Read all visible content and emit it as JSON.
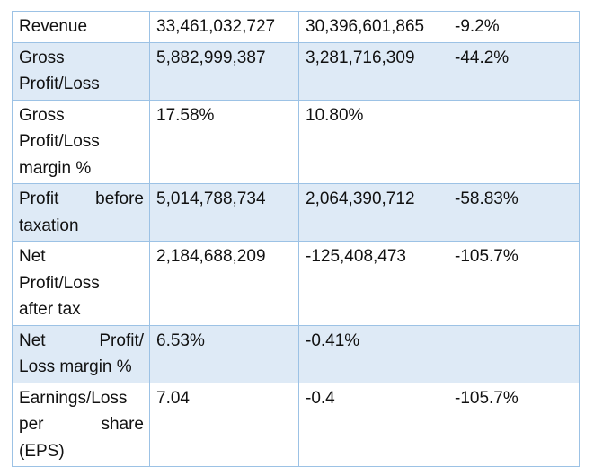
{
  "table": {
    "rows": [
      {
        "label_lines": [
          "Revenue"
        ],
        "col1": "33,461,032,727",
        "col2": "30,396,601,865",
        "col3": "-9.2%"
      },
      {
        "label_lines": [
          "Gross",
          "Profit/Loss"
        ],
        "col1": "5,882,999,387",
        "col2": "3,281,716,309",
        "col3": "-44.2%"
      },
      {
        "label_lines": [
          "Gross",
          "Profit/Loss",
          "margin %"
        ],
        "col1": "17.58%",
        "col2": "10.80%",
        "col3": ""
      },
      {
        "label_lines": [
          "Profit before",
          "taxation"
        ],
        "col1": "5,014,788,734",
        "col2": "2,064,390,712",
        "col3": "-58.83%"
      },
      {
        "label_lines": [
          "Net",
          "Profit/Loss",
          "after tax"
        ],
        "col1": "2,184,688,209",
        "col2": "-125,408,473",
        "col3": "-105.7%"
      },
      {
        "label_lines": [
          "Net Profit/",
          "Loss margin %"
        ],
        "col1": "6.53%",
        "col2": "-0.41%",
        "col3": ""
      },
      {
        "label_lines": [
          "Earnings/Loss",
          "per share",
          "(EPS)"
        ],
        "col1": "7.04",
        "col2": "-0.4",
        "col3": "-105.7%"
      }
    ]
  },
  "colors": {
    "border": "#9cc2e5",
    "shaded_row": "#deeaf6"
  }
}
